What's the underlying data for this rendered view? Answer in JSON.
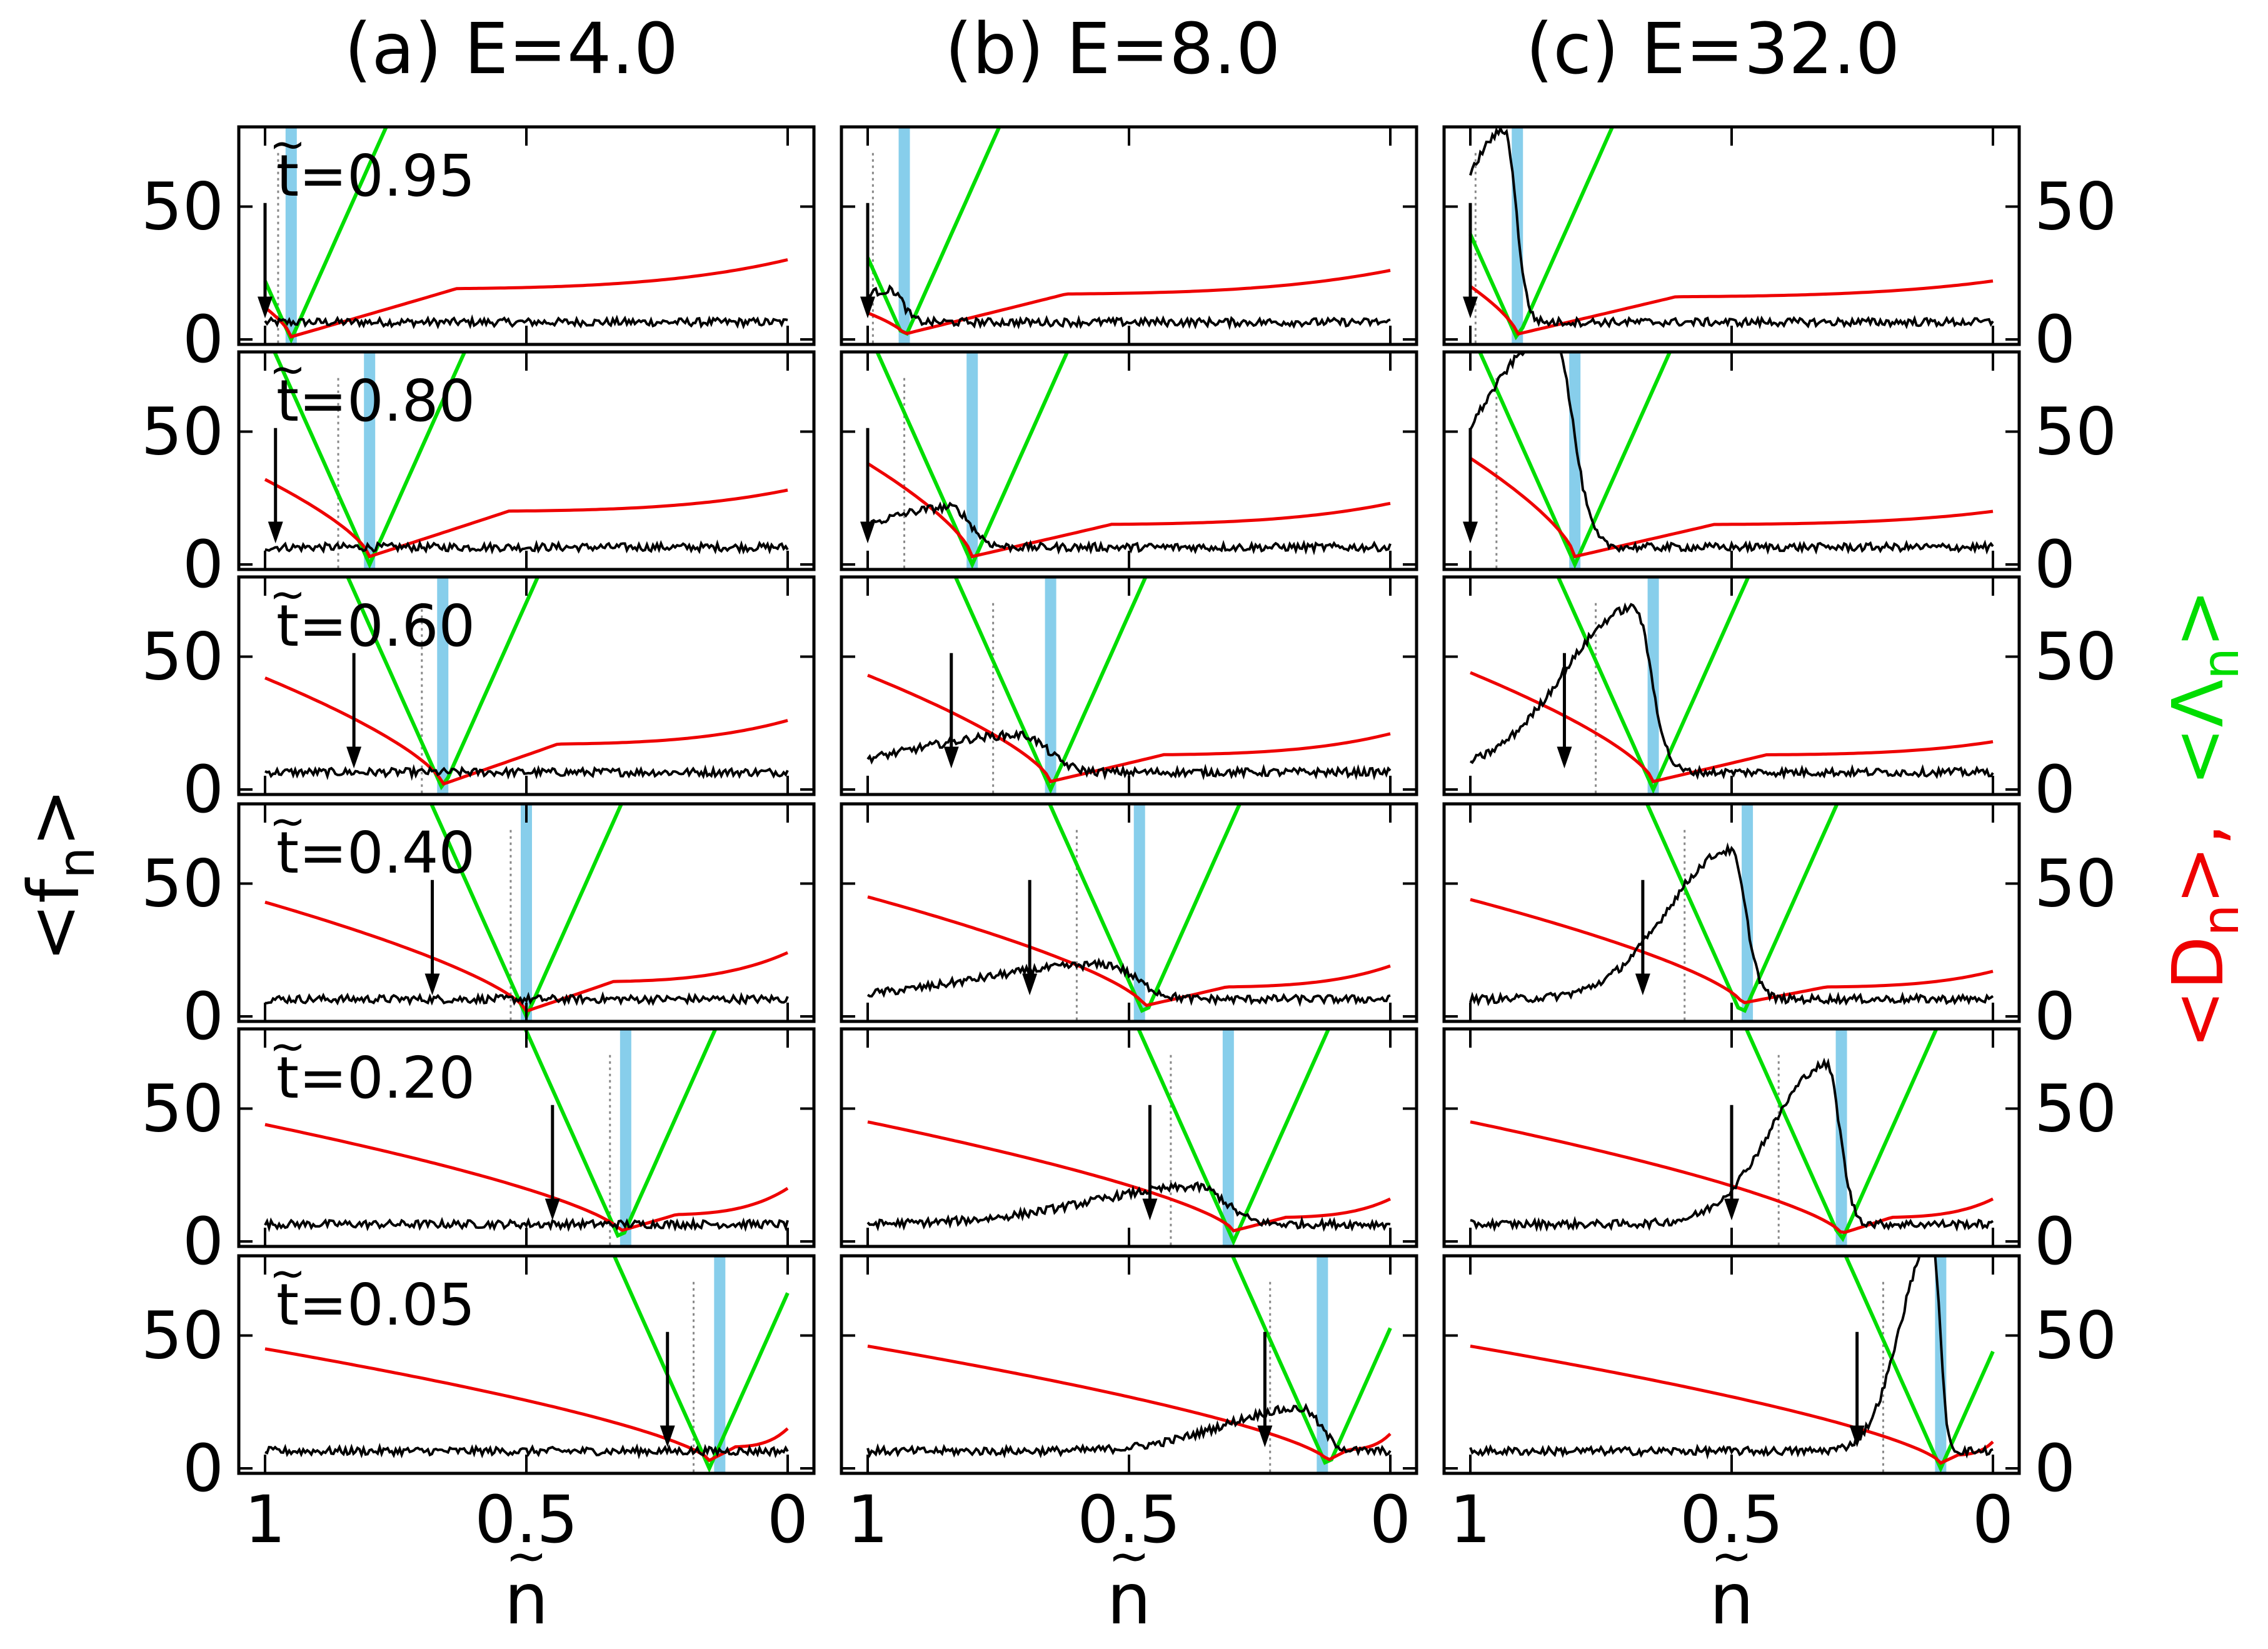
{
  "chart_data": {
    "type": "line",
    "column_titles": [
      "(a) E=4.0",
      "(b) E=8.0",
      "(c) E=32.0"
    ],
    "row_labels": [
      "t=0.95",
      "t=0.80",
      "t=0.60",
      "t=0.40",
      "t=0.20",
      "t=0.05"
    ],
    "row_t_values": [
      0.95,
      0.8,
      0.6,
      0.4,
      0.2,
      0.05
    ],
    "xlabel": "n",
    "xlabel_decoration": "~",
    "ylabel_left": "<f",
    "ylabel_left_sub": "n",
    "ylabel_left_close": ">",
    "ylabel_right_D": "<D",
    "ylabel_right_D_sub": "n",
    "ylabel_right_D_close": ">,",
    "ylabel_right_L": "<Λ",
    "ylabel_right_L_sub": "n",
    "ylabel_right_L_close": ">",
    "xlim": [
      1,
      0
    ],
    "ylim": [
      0,
      80
    ],
    "xticks": [
      1,
      0.5,
      0
    ],
    "xtick_labels": [
      "1",
      "0.5",
      "0"
    ],
    "yticks": [
      0,
      50
    ],
    "ytick_labels": [
      "0",
      "50"
    ],
    "colors": {
      "f": "#000000",
      "D": "#ee0000",
      "Lambda": "#00dd00",
      "marker_band": "#87ceeb",
      "dotted": "#888888",
      "axes": "#000000"
    },
    "series_names": [
      "<f_n>",
      "<D_n>",
      "<Λ_n>"
    ],
    "panels": [
      [
        {
          "vertex_x": 0.95,
          "arrow_x": 1.0,
          "dotted_x": 0.975,
          "band_x": 0.95,
          "d_left": 12,
          "d_dip": 1,
          "d_right": 19,
          "d_end": 30
        },
        {
          "vertex_x": 0.8,
          "arrow_x": 0.98,
          "dotted_x": 0.86,
          "band_x": 0.8,
          "d_left": 32,
          "d_dip": 3,
          "d_right": 20,
          "d_end": 28
        },
        {
          "vertex_x": 0.66,
          "arrow_x": 0.83,
          "dotted_x": 0.7,
          "band_x": 0.66,
          "d_left": 42,
          "d_dip": 2,
          "d_right": 17,
          "d_end": 26
        },
        {
          "vertex_x": 0.5,
          "arrow_x": 0.68,
          "dotted_x": 0.53,
          "band_x": 0.5,
          "d_left": 43,
          "d_dip": 2,
          "d_right": 13,
          "d_end": 24
        },
        {
          "vertex_x": 0.32,
          "arrow_x": 0.45,
          "dotted_x": 0.34,
          "band_x": 0.31,
          "d_left": 44,
          "d_dip": 4,
          "d_right": 10,
          "d_end": 20
        },
        {
          "vertex_x": 0.15,
          "arrow_x": 0.23,
          "dotted_x": 0.18,
          "band_x": 0.13,
          "d_left": 45,
          "d_dip": 3,
          "d_right": 8,
          "d_end": 15
        }
      ],
      [
        {
          "vertex_x": 0.93,
          "arrow_x": 1.0,
          "dotted_x": 0.99,
          "band_x": 0.93,
          "d_left": 10,
          "d_dip": 2,
          "d_right": 17,
          "d_end": 26,
          "peak": 12,
          "peak_w": 0.03
        },
        {
          "vertex_x": 0.8,
          "arrow_x": 1.0,
          "dotted_x": 0.93,
          "band_x": 0.8,
          "d_left": 38,
          "d_dip": 3,
          "d_right": 15,
          "d_end": 23,
          "peak": 15,
          "peak_w": 0.05
        },
        {
          "vertex_x": 0.65,
          "arrow_x": 0.84,
          "dotted_x": 0.76,
          "band_x": 0.65,
          "d_left": 43,
          "d_dip": 3,
          "d_right": 13,
          "d_end": 21,
          "peak": 14,
          "peak_w": 0.07
        },
        {
          "vertex_x": 0.47,
          "arrow_x": 0.69,
          "dotted_x": 0.6,
          "band_x": 0.48,
          "d_left": 45,
          "d_dip": 4,
          "d_right": 11,
          "d_end": 19,
          "peak": 13,
          "peak_w": 0.08
        },
        {
          "vertex_x": 0.3,
          "arrow_x": 0.46,
          "dotted_x": 0.42,
          "band_x": 0.31,
          "d_left": 45,
          "d_dip": 4,
          "d_right": 9,
          "d_end": 16,
          "peak": 14,
          "peak_w": 0.07
        },
        {
          "vertex_x": 0.12,
          "arrow_x": 0.24,
          "dotted_x": 0.23,
          "band_x": 0.13,
          "d_left": 46,
          "d_dip": 3,
          "d_right": 7,
          "d_end": 13,
          "peak": 16,
          "peak_w": 0.05
        }
      ],
      [
        {
          "vertex_x": 0.91,
          "arrow_x": 1.0,
          "dotted_x": 0.99,
          "band_x": 0.91,
          "d_left": 20,
          "d_dip": 2,
          "d_right": 16,
          "d_end": 22,
          "peak": 72,
          "peak_w": 0.03
        },
        {
          "vertex_x": 0.8,
          "arrow_x": 1.0,
          "dotted_x": 0.95,
          "band_x": 0.8,
          "d_left": 40,
          "d_dip": 3,
          "d_right": 15,
          "d_end": 20,
          "peak": 80,
          "peak_w": 0.05
        },
        {
          "vertex_x": 0.65,
          "arrow_x": 0.82,
          "dotted_x": 0.76,
          "band_x": 0.65,
          "d_left": 44,
          "d_dip": 3,
          "d_right": 13,
          "d_end": 18,
          "peak": 62,
          "peak_w": 0.045
        },
        {
          "vertex_x": 0.48,
          "arrow_x": 0.67,
          "dotted_x": 0.59,
          "band_x": 0.47,
          "d_left": 44,
          "d_dip": 5,
          "d_right": 11,
          "d_end": 17,
          "peak": 56,
          "peak_w": 0.04
        },
        {
          "vertex_x": 0.29,
          "arrow_x": 0.5,
          "dotted_x": 0.41,
          "band_x": 0.29,
          "d_left": 45,
          "d_dip": 3,
          "d_right": 9,
          "d_end": 16,
          "peak": 60,
          "peak_w": 0.035
        },
        {
          "vertex_x": 0.1,
          "arrow_x": 0.26,
          "dotted_x": 0.21,
          "band_x": 0.1,
          "d_left": 46,
          "d_dip": 2,
          "d_right": 5,
          "d_end": 10,
          "peak": 80,
          "peak_w": 0.02
        }
      ]
    ]
  }
}
